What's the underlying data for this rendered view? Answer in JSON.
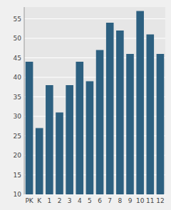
{
  "chart_data": {
    "type": "bar",
    "categories": [
      "PK",
      "K",
      "1",
      "2",
      "3",
      "4",
      "5",
      "6",
      "7",
      "8",
      "9",
      "10",
      "11",
      "12"
    ],
    "values": [
      44,
      27,
      38,
      31,
      38,
      44,
      39,
      47,
      54,
      52,
      46,
      57,
      51,
      46
    ],
    "color": "#2d6080",
    "ylim": [
      10,
      58
    ],
    "yticks": [
      10,
      15,
      20,
      25,
      30,
      35,
      40,
      45,
      50,
      55
    ],
    "grid": true
  }
}
